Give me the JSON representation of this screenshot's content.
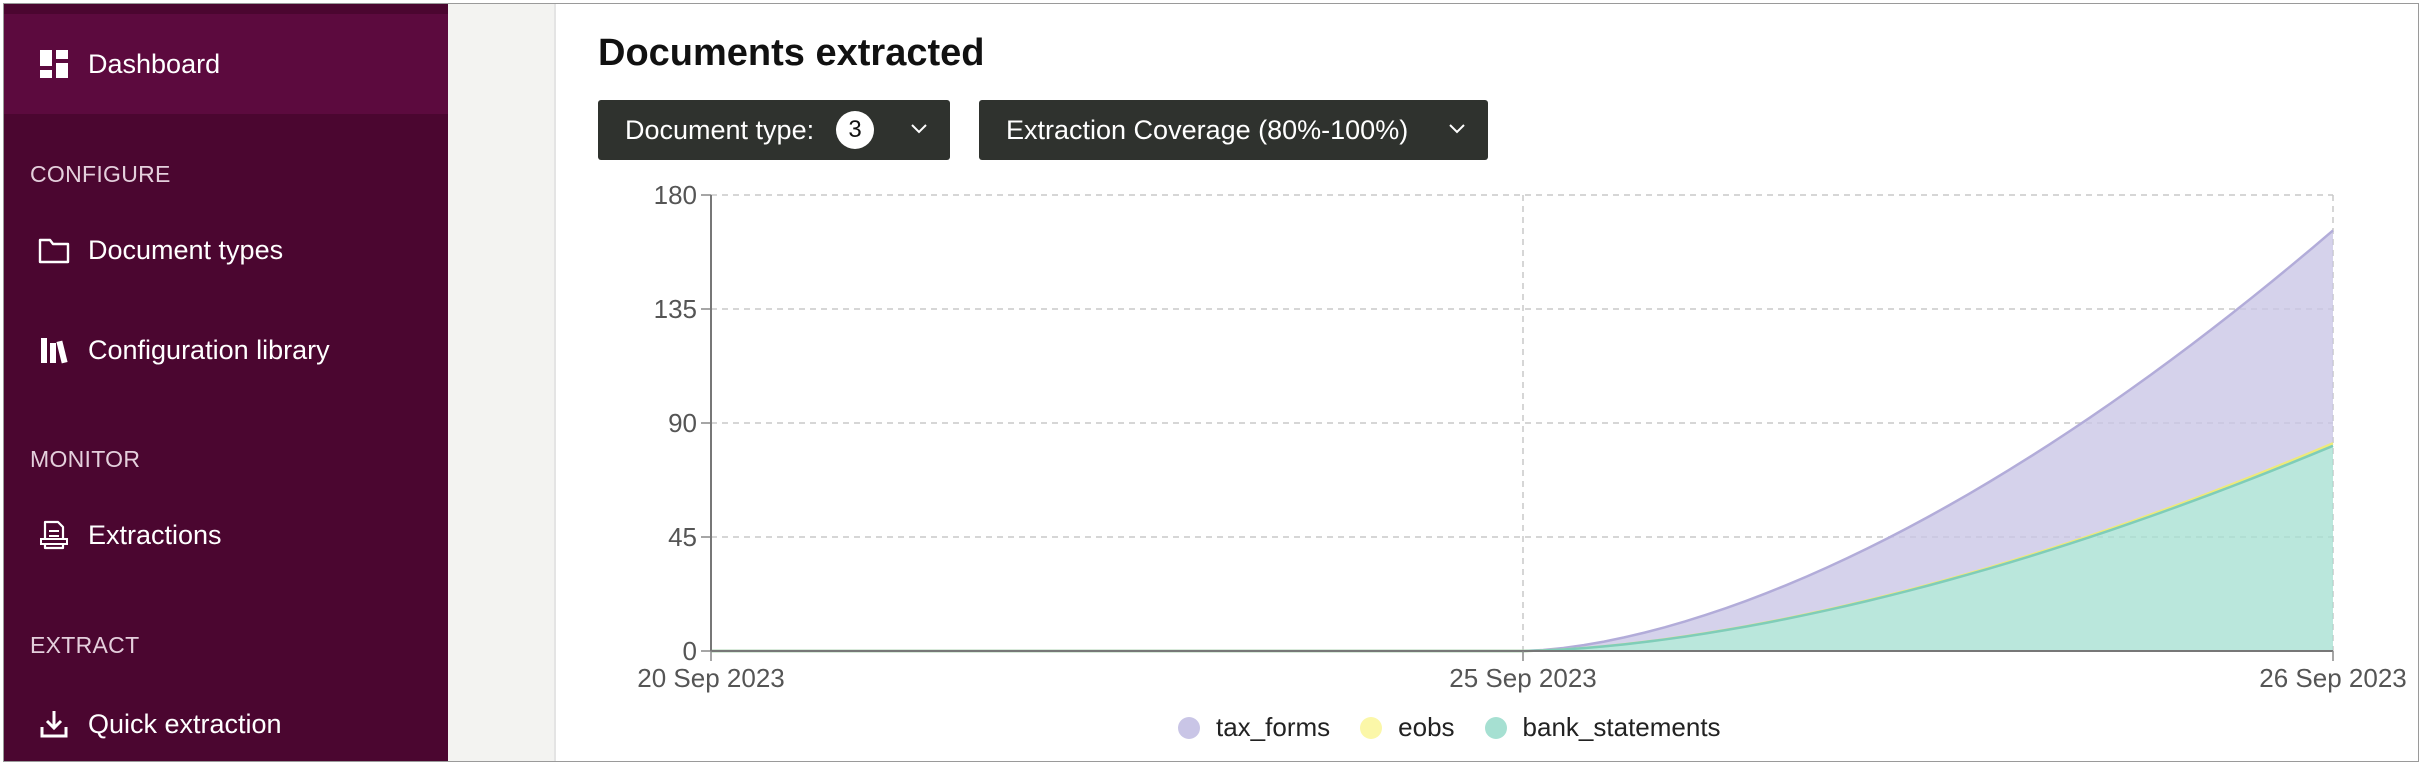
{
  "sidebar": {
    "dashboard": "Dashboard",
    "sections": {
      "configure": "CONFIGURE",
      "monitor": "MONITOR",
      "extract": "EXTRACT"
    },
    "items": {
      "document_types": "Document types",
      "configuration_library": "Configuration library",
      "extractions": "Extractions",
      "quick_extraction": "Quick extraction"
    }
  },
  "main": {
    "title": "Documents extracted",
    "filters": {
      "document_type_label": "Document type:",
      "document_type_count": "3",
      "coverage_label": "Extraction Coverage (80%-100%)"
    }
  },
  "colors": {
    "sidebar_bg": "#4b0630",
    "sidebar_active": "#5c0a3e",
    "filter_bg": "#2f322e",
    "tax_forms": "#c9c5e6",
    "eobs": "#fbf7a8",
    "bank_statements": "#a6e0d2"
  },
  "chart_data": {
    "type": "area",
    "stacked": true,
    "x": [
      "20 Sep 2023",
      "25 Sep 2023",
      "26 Sep 2023"
    ],
    "x_ticks": [
      "20 Sep 2023",
      "25 Sep 2023",
      "26 Sep 2023"
    ],
    "y_ticks": [
      0,
      45,
      90,
      135,
      180
    ],
    "ylim": [
      0,
      180
    ],
    "grid": true,
    "legend_position": "bottom",
    "series": [
      {
        "name": "bank_statements",
        "values": [
          0,
          0,
          81
        ]
      },
      {
        "name": "eobs",
        "values": [
          0,
          0,
          1
        ]
      },
      {
        "name": "tax_forms",
        "values": [
          0,
          0,
          84
        ]
      }
    ]
  }
}
